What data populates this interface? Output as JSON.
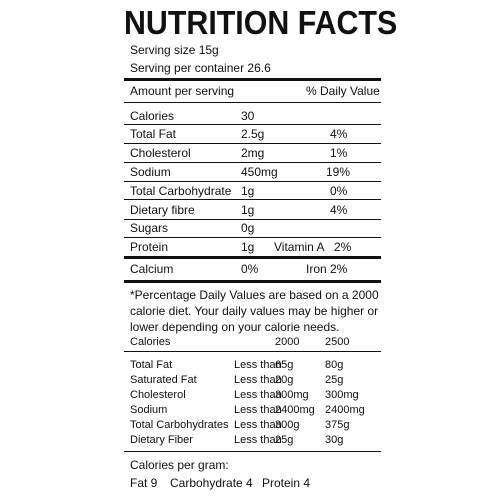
{
  "title": "NUTRITION FACTS",
  "serving": {
    "size": "Serving size 15g",
    "per_container": "Serving per container 26.6"
  },
  "header": {
    "amount": "Amount per serving",
    "daily_value": "% Daily Value"
  },
  "nutrients": [
    {
      "name": "Calories",
      "amount": "30",
      "dv": ""
    },
    {
      "name": "Total Fat",
      "amount": "2.5g",
      "dv": "4%"
    },
    {
      "name": "Cholesterol",
      "amount": "2mg",
      "dv": "1%"
    },
    {
      "name": "Sodium",
      "amount": "450mg",
      "dv": "19%"
    },
    {
      "name": "Total Carbohydrate",
      "amount": "1g",
      "dv": "0%"
    },
    {
      "name": "Dietary fibre",
      "amount": "1g",
      "dv": "4%"
    },
    {
      "name": "Sugars",
      "amount": "0g",
      "dv": ""
    },
    {
      "name": "Protein",
      "amount": "1g",
      "vitamin": "Vitamin A",
      "dv": "2%"
    }
  ],
  "calcium": {
    "name": "Calcium",
    "amount": "0%",
    "iron": "Iron 2%"
  },
  "footnote": [
    "*Percentage Daily Values are based on a 2000",
    "calorie diet. Your daily values may be higher or",
    "lower depending on your calorie needs."
  ],
  "dv_table": {
    "header": {
      "label": "Calories",
      "c1": "2000",
      "c2": "2500"
    },
    "rows": [
      {
        "name": "Total Fat",
        "cond": "Less than",
        "c1": "65g",
        "c2": "80g"
      },
      {
        "name": "Saturated Fat",
        "cond": "Less than",
        "c1": "20g",
        "c2": "25g"
      },
      {
        "name": "Cholesterol",
        "cond": "Less than",
        "c1": "300mg",
        "c2": "300mg"
      },
      {
        "name": "Sodium",
        "cond": "Less than",
        "c1": "2400mg",
        "c2": "2400mg"
      },
      {
        "name": "Total Carbohydrates",
        "cond": "Less than",
        "c1": "300g",
        "c2": "375g"
      },
      {
        "name": "Dietary Fiber",
        "cond": "Less than",
        "c1": "25g",
        "c2": "30g"
      }
    ]
  },
  "per_gram": {
    "title": "Calories per gram:",
    "fat": "Fat 9",
    "carb": "Carbohydrate 4",
    "protein": "Protein 4"
  }
}
